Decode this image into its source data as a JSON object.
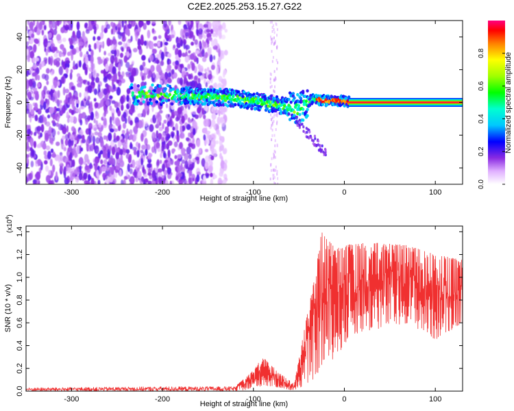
{
  "title": "C2E2.2025.253.15.27.G22",
  "colors": {
    "snr_line": "#f03030",
    "axis": "#000000"
  },
  "chart_data": [
    {
      "type": "heatmap",
      "name": "spectrogram",
      "xlabel": "Height of straight line (km)",
      "ylabel": "Frequency (Hz)",
      "xlim": [
        -350,
        130
      ],
      "ylim": [
        -50,
        50
      ],
      "x_ticks": [
        {
          "value": -300,
          "label": "-300"
        },
        {
          "value": -200,
          "label": "-200"
        },
        {
          "value": -100,
          "label": "-100"
        },
        {
          "value": 0,
          "label": "0"
        },
        {
          "value": 100,
          "label": "100"
        }
      ],
      "y_ticks": [
        {
          "value": -40,
          "label": "-40"
        },
        {
          "value": -20,
          "label": "-20"
        },
        {
          "value": 0,
          "label": "0"
        },
        {
          "value": 20,
          "label": "20"
        },
        {
          "value": 40,
          "label": "40"
        }
      ],
      "colorbar": {
        "label": "Normalized spectral amplitude",
        "range": [
          0,
          1
        ],
        "ticks": [
          {
            "value": 0.0,
            "label": "0.0"
          },
          {
            "value": 0.2,
            "label": "0.2"
          },
          {
            "value": 0.4,
            "label": "0.4"
          },
          {
            "value": 0.6,
            "label": "0.6"
          },
          {
            "value": 0.8,
            "label": "0.8"
          }
        ]
      },
      "features": {
        "noise_region_x": [
          -350,
          -140
        ],
        "doppler_trace": [
          {
            "x": -230,
            "f": 5
          },
          {
            "x": -170,
            "f": 4
          },
          {
            "x": -130,
            "f": 3
          },
          {
            "x": -100,
            "f": 1
          },
          {
            "x": -70,
            "f": -2
          },
          {
            "x": -50,
            "f": -4
          },
          {
            "x": -35,
            "f": 2
          },
          {
            "x": -20,
            "f": 1
          },
          {
            "x": -5,
            "f": 1
          },
          {
            "x": 10,
            "f": 0
          },
          {
            "x": 130,
            "f": 0
          }
        ],
        "carrier_start_x": 5,
        "carrier_freq": 0
      }
    },
    {
      "type": "line",
      "name": "snr",
      "xlabel": "Height of straight line (km)",
      "ylabel": "SNR (10 * v/v)",
      "y_scale_label": "(x10",
      "y_scale_exponent": "4",
      "y_scale_close": ")",
      "xlim": [
        -350,
        130
      ],
      "ylim": [
        0,
        1.45
      ],
      "x_ticks": [
        {
          "value": -300,
          "label": "-300"
        },
        {
          "value": -200,
          "label": "-200"
        },
        {
          "value": -100,
          "label": "-100"
        },
        {
          "value": 0,
          "label": "0"
        },
        {
          "value": 100,
          "label": "100"
        }
      ],
      "y_ticks": [
        {
          "value": 0.0,
          "label": "0.0"
        },
        {
          "value": 0.2,
          "label": "0.2"
        },
        {
          "value": 0.4,
          "label": "0.4"
        },
        {
          "value": 0.6,
          "label": "0.6"
        },
        {
          "value": 0.8,
          "label": "0.8"
        },
        {
          "value": 1.0,
          "label": "1.0"
        },
        {
          "value": 1.2,
          "label": "1.2"
        },
        {
          "value": 1.4,
          "label": "1.4"
        }
      ],
      "series": [
        {
          "name": "SNR",
          "envelope": [
            {
              "x": -350,
              "lo": 0.0,
              "hi": 0.03
            },
            {
              "x": -200,
              "lo": 0.0,
              "hi": 0.04
            },
            {
              "x": -120,
              "lo": 0.0,
              "hi": 0.04
            },
            {
              "x": -100,
              "lo": 0.02,
              "hi": 0.18
            },
            {
              "x": -90,
              "lo": 0.05,
              "hi": 0.3
            },
            {
              "x": -70,
              "lo": 0.03,
              "hi": 0.15
            },
            {
              "x": -55,
              "lo": 0.0,
              "hi": 0.06
            },
            {
              "x": -45,
              "lo": 0.05,
              "hi": 0.5
            },
            {
              "x": -35,
              "lo": 0.1,
              "hi": 0.9
            },
            {
              "x": -25,
              "lo": 0.2,
              "hi": 1.4
            },
            {
              "x": -10,
              "lo": 0.3,
              "hi": 1.25
            },
            {
              "x": 10,
              "lo": 0.5,
              "hi": 1.3
            },
            {
              "x": 40,
              "lo": 0.55,
              "hi": 1.3
            },
            {
              "x": 70,
              "lo": 0.6,
              "hi": 1.28
            },
            {
              "x": 100,
              "lo": 0.45,
              "hi": 1.2
            },
            {
              "x": 130,
              "lo": 0.6,
              "hi": 1.15
            }
          ]
        }
      ]
    }
  ]
}
